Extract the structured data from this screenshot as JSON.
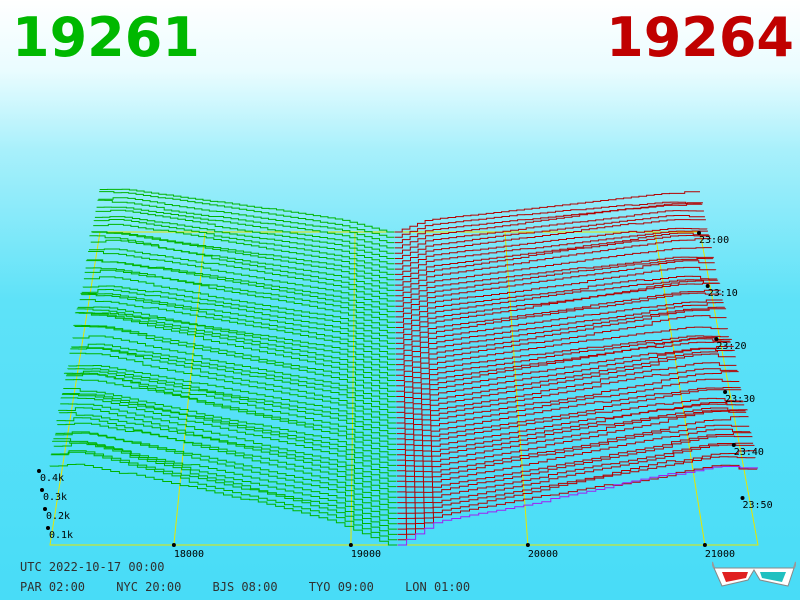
{
  "header": {
    "bid_price": "19261",
    "ask_price": "19264"
  },
  "chart_data": {
    "type": "area",
    "x_ticks": [
      "18000",
      "19000",
      "20000",
      "21000"
    ],
    "x_tick_values": [
      18000,
      19000,
      20000,
      21000
    ],
    "volume_ticks": [
      "0.1k",
      "0.2k",
      "0.3k",
      "0.4k"
    ],
    "time_ticks": [
      "23:00",
      "23:10",
      "23:20",
      "23:30",
      "23:40",
      "23:50"
    ],
    "bid_color": "#00b400",
    "ask_color": "#b40000",
    "latest_ask_color": "#a020f0",
    "grid_color": "#e6e600",
    "bid": {
      "far_volume": 330,
      "near_volume": 90,
      "knee_price": 18950,
      "gap_price": 19261
    },
    "ask": {
      "far_volume": 300,
      "near_volume": 90,
      "knee_price": 19050,
      "gap_price": 19264
    }
  },
  "footer": {
    "utc": "UTC 2022-10-17 00:00",
    "zones": [
      "PAR 02:00",
      "NYC 20:00",
      "BJS 08:00",
      "TYO 09:00",
      "LON 01:00"
    ]
  }
}
